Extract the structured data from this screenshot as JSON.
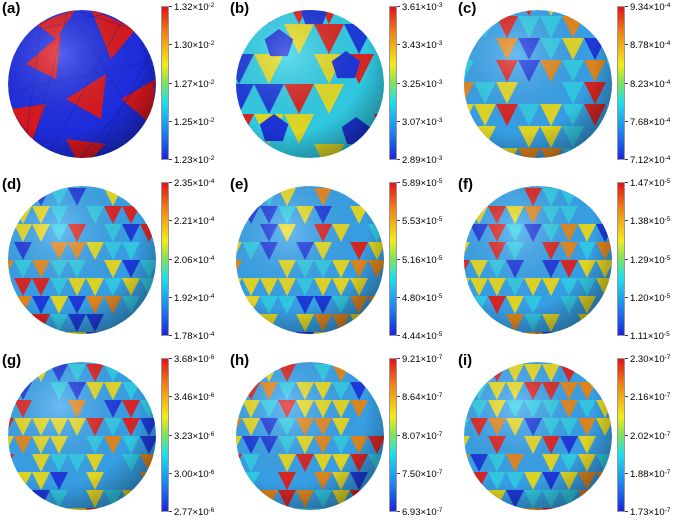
{
  "panels": [
    {
      "label": "(a)",
      "style": "polyhedron",
      "ticks": [
        "1.32×10",
        "1.30×10",
        "1.27×10",
        "1.25×10",
        "1.23×10"
      ],
      "exp": [
        "-2",
        "-2",
        "-2",
        "-2",
        "-2"
      ]
    },
    {
      "label": "(b)",
      "style": "coarse",
      "ticks": [
        "3.61×10",
        "3.43×10",
        "3.25×10",
        "3.07×10",
        "2.89×10"
      ],
      "exp": [
        "-3",
        "-3",
        "-3",
        "-3",
        "-3"
      ]
    },
    {
      "label": "(c)",
      "style": "medium",
      "ticks": [
        "9.34×10",
        "8.78×10",
        "8.23×10",
        "7.68×10",
        "7.12×10"
      ],
      "exp": [
        "-4",
        "-4",
        "-4",
        "-4",
        "-4"
      ]
    },
    {
      "label": "(d)",
      "style": "fine",
      "ticks": [
        "2.35×10",
        "2.21×10",
        "2.06×10",
        "1.92×10",
        "1.78×10"
      ],
      "exp": [
        "-4",
        "-4",
        "-4",
        "-4",
        "-4"
      ]
    },
    {
      "label": "(e)",
      "style": "fine",
      "ticks": [
        "5.89×10",
        "5.53×10",
        "5.16×10",
        "4.80×10",
        "4.44×10"
      ],
      "exp": [
        "-5",
        "-5",
        "-5",
        "-5",
        "-5"
      ]
    },
    {
      "label": "(f)",
      "style": "fine",
      "ticks": [
        "1.47×10",
        "1.38×10",
        "1.29×10",
        "1.20×10",
        "1.11×10"
      ],
      "exp": [
        "-5",
        "-5",
        "-5",
        "-5",
        "-5"
      ]
    },
    {
      "label": "(g)",
      "style": "fine",
      "ticks": [
        "3.68×10",
        "3.46×10",
        "3.23×10",
        "3.00×10",
        "2.77×10"
      ],
      "exp": [
        "-6",
        "-6",
        "-6",
        "-6",
        "-6"
      ]
    },
    {
      "label": "(h)",
      "style": "fine",
      "ticks": [
        "9.21×10",
        "8.64×10",
        "8.07×10",
        "7.50×10",
        "6.93×10"
      ],
      "exp": [
        "-7",
        "-7",
        "-7",
        "-7",
        "-7"
      ]
    },
    {
      "label": "(i)",
      "style": "fine",
      "ticks": [
        "2.30×10",
        "2.16×10",
        "2.02×10",
        "1.88×10",
        "1.73×10"
      ],
      "exp": [
        "-7",
        "-7",
        "-7",
        "-7",
        "-7"
      ]
    }
  ],
  "colors": {
    "red": "#e8201a",
    "orange": "#f08a16",
    "yellow": "#f3e21c",
    "cyan": "#33d3ec",
    "lightblue": "#3aa6ef",
    "blue": "#1c36e0",
    "polyBlue": "#1f2fe8",
    "polyRed": "#e0191f"
  }
}
